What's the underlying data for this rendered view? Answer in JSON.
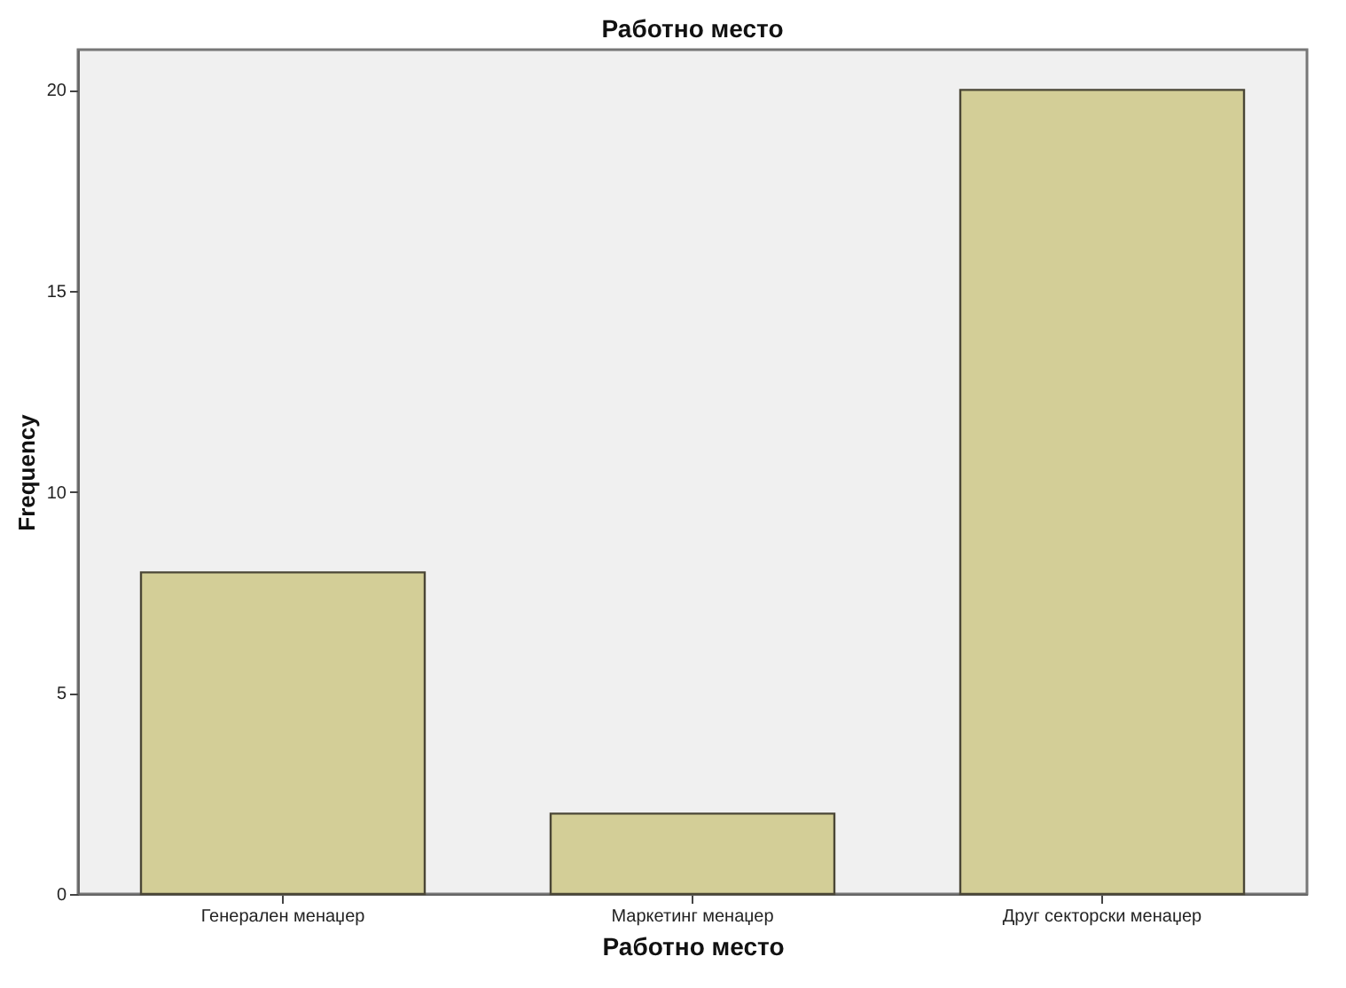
{
  "chart_data": {
    "type": "bar",
    "title": "Работно место",
    "xlabel": "Работно место",
    "ylabel": "Frequency",
    "categories": [
      "Генерален менаџер",
      "Маркетинг менаџер",
      "Друг секторски менаџер"
    ],
    "values": [
      8,
      2,
      20
    ],
    "color": "#d3ce97",
    "ylim": [
      0,
      21
    ],
    "yticks": [
      0,
      5,
      10,
      15,
      20
    ],
    "grid": false
  }
}
